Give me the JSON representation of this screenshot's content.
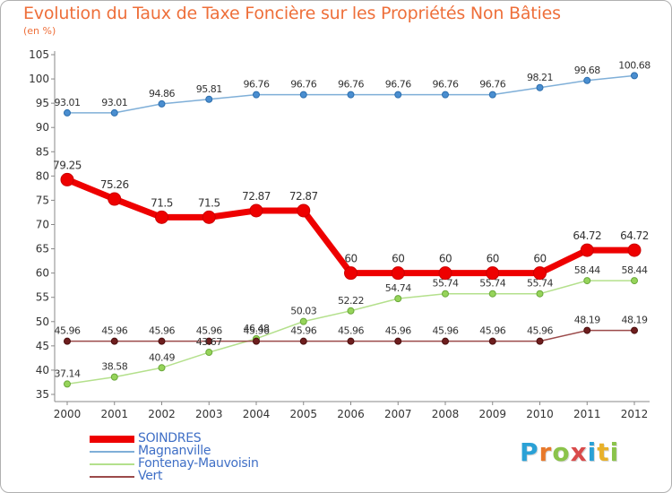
{
  "title": "Evolution du Taux de Taxe Foncière sur les Propriétés Non Bâties",
  "subtitle": "(en %)",
  "logo": {
    "text": "Proxiti",
    "letter_colors": [
      "#2aa1d6",
      "#e8792a",
      "#8bc34a",
      "#d94a4a",
      "#2aa1d6",
      "#e8b12a",
      "#8bc34a"
    ]
  },
  "colors": {
    "title": "#ee6f3a",
    "legend_text": "#3f6fc6",
    "axis": "#888888",
    "grid": "#dddddd"
  },
  "chart_data": {
    "type": "line",
    "title": "Evolution du Taux de Taxe Foncière sur les Propriétés Non Bâties",
    "ylabel": "(en %)",
    "xlabel": "",
    "x": [
      "2000",
      "2001",
      "2002",
      "2003",
      "2004",
      "2005",
      "2006",
      "2007",
      "2008",
      "2009",
      "2010",
      "2011",
      "2012"
    ],
    "ylim": [
      35,
      105
    ],
    "yticks": [
      35,
      40,
      45,
      50,
      55,
      60,
      65,
      70,
      75,
      80,
      85,
      90,
      95,
      100,
      105
    ],
    "grid": false,
    "legend_position": "bottom-left",
    "series": [
      {
        "name": "SOINDRES",
        "color": "#ee0000",
        "marker_fill": "#ee0000",
        "marker_stroke": "#cc0000",
        "width": 7,
        "marker_radius": 7,
        "values": [
          79.25,
          75.26,
          71.5,
          71.5,
          72.87,
          72.87,
          60,
          60,
          60,
          60,
          60,
          64.72,
          64.72
        ],
        "labels": [
          "79.25",
          "75.26",
          "71.5",
          "71.5",
          "72.87",
          "72.87",
          "60",
          "60",
          "60",
          "60",
          "60",
          "64.72",
          "64.72"
        ]
      },
      {
        "name": "Magnanville",
        "color": "#7fafd8",
        "marker_fill": "#4a8ed0",
        "marker_stroke": "#2d6fae",
        "width": 1.5,
        "marker_radius": 3.5,
        "values": [
          93.01,
          93.01,
          94.86,
          95.81,
          96.76,
          96.76,
          96.76,
          96.76,
          96.76,
          96.76,
          98.21,
          99.68,
          100.68
        ],
        "labels": [
          "93.01",
          "93.01",
          "94.86",
          "95.81",
          "96.76",
          "96.76",
          "96.76",
          "96.76",
          "96.76",
          "96.76",
          "98.21",
          "99.68",
          "100.68"
        ]
      },
      {
        "name": "Fontenay-Mauvoisin",
        "color": "#b4e08c",
        "marker_fill": "#96d45a",
        "marker_stroke": "#6aa83a",
        "width": 1.5,
        "marker_radius": 3.5,
        "values": [
          37.14,
          38.58,
          40.49,
          43.67,
          46.48,
          50.03,
          52.22,
          54.74,
          55.74,
          55.74,
          55.74,
          58.44,
          58.44
        ],
        "labels": [
          "37.14",
          "38.58",
          "40.49",
          "43.67",
          "46.48",
          "50.03",
          "52.22",
          "54.74",
          "55.74",
          "55.74",
          "55.74",
          "58.44",
          "58.44"
        ]
      },
      {
        "name": "Vert",
        "color": "#9b4a4a",
        "marker_fill": "#6e1e1e",
        "marker_stroke": "#4a0e0e",
        "width": 1.5,
        "marker_radius": 3.5,
        "values": [
          45.96,
          45.96,
          45.96,
          45.96,
          45.96,
          45.96,
          45.96,
          45.96,
          45.96,
          45.96,
          45.96,
          48.19,
          48.19
        ],
        "labels": [
          "45.96",
          "45.96",
          "45.96",
          "45.96",
          "45.96",
          "45.96",
          "45.96",
          "45.96",
          "45.96",
          "45.96",
          "45.96",
          "48.19",
          "48.19"
        ]
      }
    ]
  }
}
